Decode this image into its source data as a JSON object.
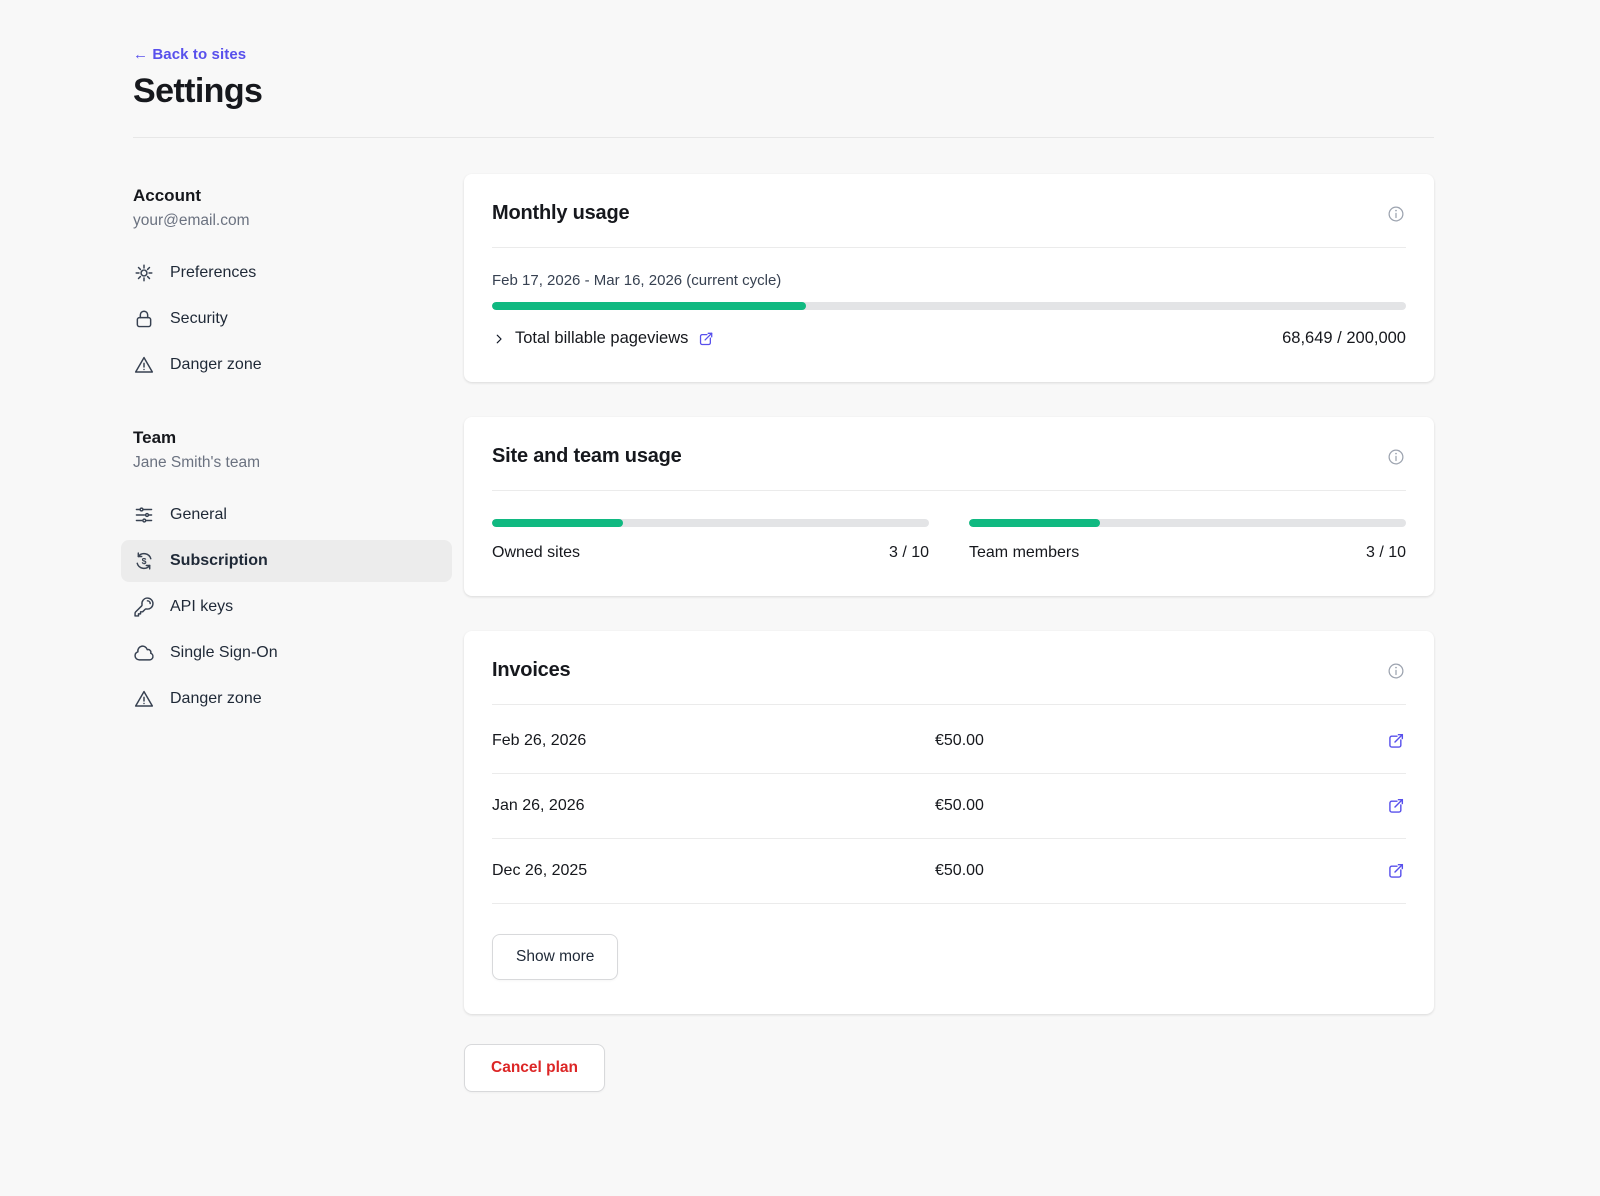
{
  "header": {
    "back_link": "← Back to sites",
    "title": "Settings"
  },
  "sidebar": {
    "account": {
      "heading": "Account",
      "subheading": "your@email.com",
      "items": [
        {
          "label": "Preferences",
          "icon": "gear-icon"
        },
        {
          "label": "Security",
          "icon": "lock-icon"
        },
        {
          "label": "Danger zone",
          "icon": "warning-icon"
        }
      ]
    },
    "team": {
      "heading": "Team",
      "subheading": "Jane Smith's team",
      "items": [
        {
          "label": "General",
          "icon": "sliders-icon"
        },
        {
          "label": "Subscription",
          "icon": "currency-refresh-icon",
          "selected": true
        },
        {
          "label": "API keys",
          "icon": "key-icon"
        },
        {
          "label": "Single Sign-On",
          "icon": "cloud-icon"
        },
        {
          "label": "Danger zone",
          "icon": "warning-icon"
        }
      ]
    }
  },
  "monthly_usage": {
    "title": "Monthly usage",
    "info_icon": "info-icon",
    "cycle": "Feb 17, 2026 - Mar 16, 2026 (current cycle)",
    "progress_percent": 34.3,
    "row_label": "Total billable pageviews",
    "row_icon": "external-link-icon",
    "row_value": "68,649 / 200,000"
  },
  "site_team_usage": {
    "title": "Site and team usage",
    "info_icon": "info-icon",
    "meters": [
      {
        "label": "Owned sites",
        "value": "3 / 10",
        "percent": 30
      },
      {
        "label": "Team members",
        "value": "3 / 10",
        "percent": 30
      }
    ]
  },
  "invoices": {
    "title": "Invoices",
    "info_icon": "info-icon",
    "rows": [
      {
        "date": "Feb 26, 2026",
        "amount": "€50.00",
        "icon": "external-link-icon"
      },
      {
        "date": "Jan 26, 2026",
        "amount": "€50.00",
        "icon": "external-link-icon"
      },
      {
        "date": "Dec 26, 2025",
        "amount": "€50.00",
        "icon": "external-link-icon"
      }
    ],
    "show_more_label": "Show more"
  },
  "cancel_plan_label": "Cancel plan",
  "colors": {
    "accent_purple": "#5850ec",
    "progress_green": "#10b981",
    "danger_red": "#dc2626",
    "page_background": "#f8f8f8"
  }
}
